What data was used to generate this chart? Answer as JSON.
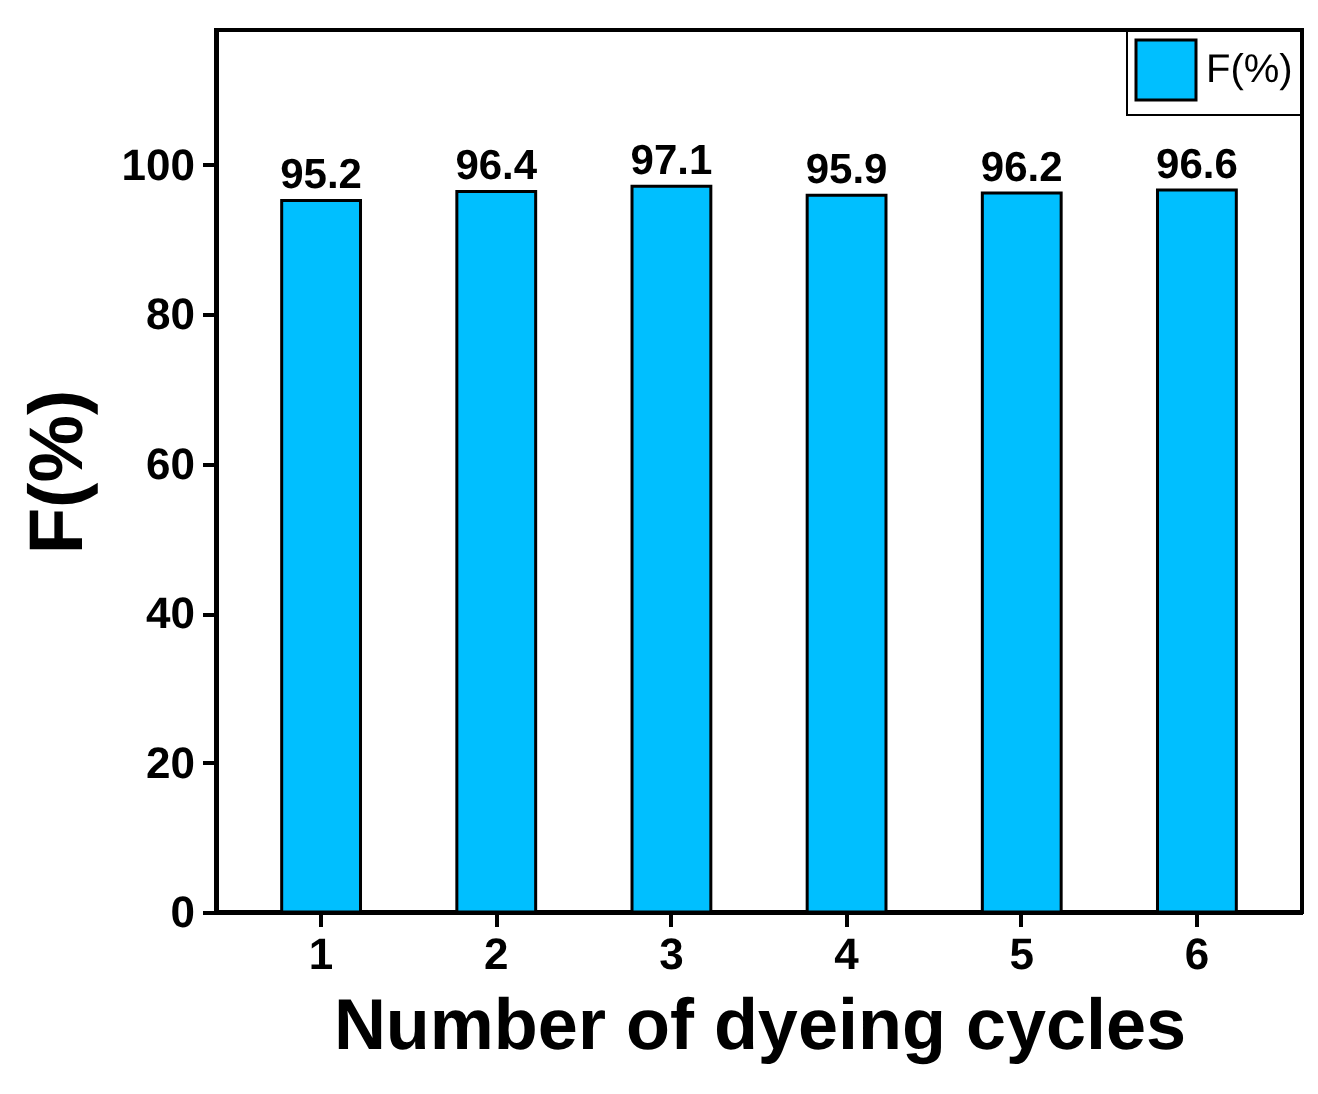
{
  "chart_data": {
    "type": "bar",
    "xlabel": "Number of dyeing cycles",
    "ylabel": "F(%)",
    "categories": [
      "1",
      "2",
      "3",
      "4",
      "5",
      "6"
    ],
    "series": [
      {
        "name": "F(%)",
        "color": "#00bfff",
        "values": [
          95.2,
          96.4,
          97.1,
          95.9,
          96.2,
          96.6
        ]
      }
    ],
    "ylim": [
      0,
      118
    ],
    "yticks": [
      0,
      20,
      40,
      60,
      80,
      100
    ],
    "data_labels": true,
    "legend": "top right",
    "grid": false
  }
}
